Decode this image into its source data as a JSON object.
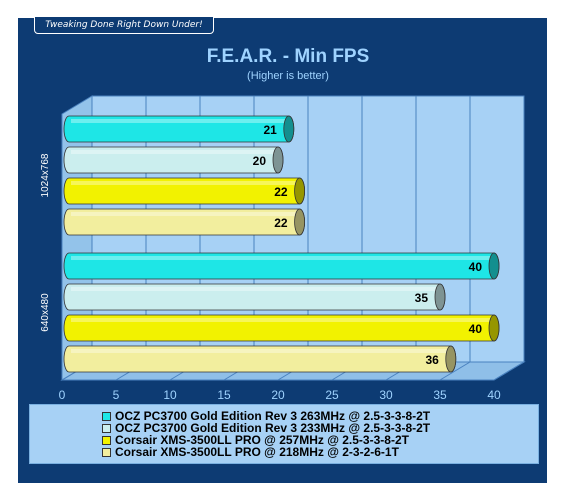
{
  "banner": "Tweaking Done Right Down Under!",
  "chart_data": {
    "type": "bar",
    "orientation": "horizontal",
    "title": "F.E.A.R. - Min FPS",
    "subtitle": "(Higher is better)",
    "categories": [
      "1024x768",
      "640x480"
    ],
    "series": [
      {
        "name": "OCZ PC3700 Gold Edition Rev 3 263MHz @ 2.5-3-3-8-2T",
        "values": [
          21,
          40
        ],
        "color": "#1ee6e6"
      },
      {
        "name": "OCZ PC3700 Gold Edition Rev 3 233MHz @ 2.5-3-3-8-2T",
        "values": [
          20,
          35
        ],
        "color": "#cbeeee"
      },
      {
        "name": "Corsair XMS-3500LL PRO @ 257MHz @ 2.5-3-3-8-2T",
        "values": [
          22,
          40
        ],
        "color": "#f2f200"
      },
      {
        "name": "Corsair XMS-3500LL PRO @ 218MHz @ 2-3-2-6-1T",
        "values": [
          22,
          36
        ],
        "color": "#f2ee9e"
      }
    ],
    "xlim": [
      0,
      40
    ],
    "xticks": [
      0,
      5,
      10,
      15,
      20,
      25,
      30,
      35,
      40
    ],
    "grid": true,
    "legend": "bottom"
  }
}
